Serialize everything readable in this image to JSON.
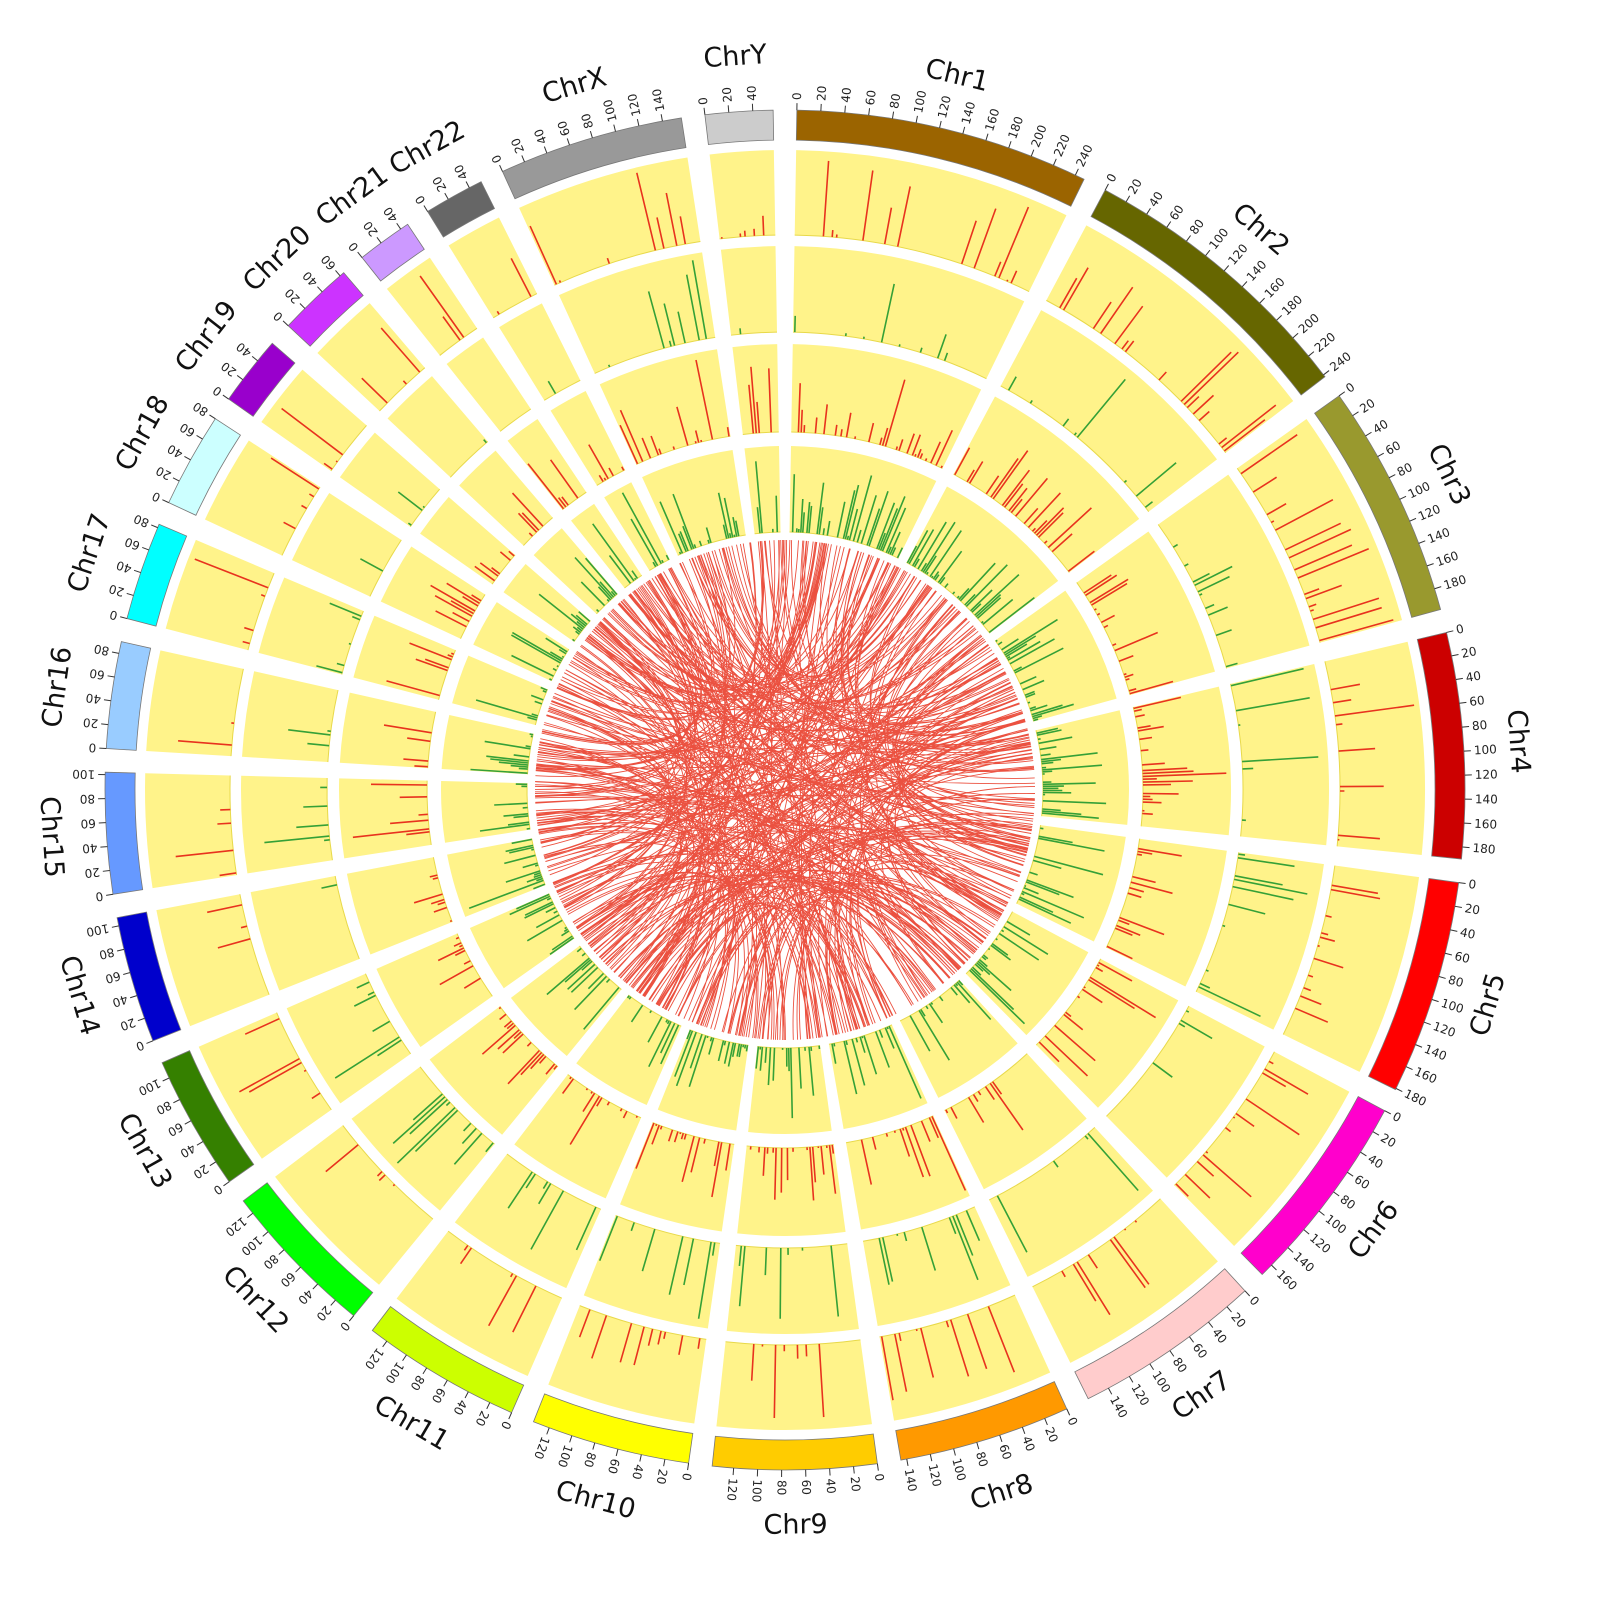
{
  "chart_data": {
    "type": "circos",
    "track_colors": {
      "background": "#FFF38A",
      "hist_red": "#E8321E",
      "hist_green": "#35A037",
      "link": "#E8321E"
    },
    "chromosomes": [
      {
        "name": "Chr1",
        "length": 248,
        "color": "#9B6400",
        "tick_step": 20,
        "ticks": [
          "0",
          "20",
          "40",
          "60",
          "80",
          "100",
          "120",
          "140",
          "160",
          "180",
          "200",
          "220",
          "240"
        ]
      },
      {
        "name": "Chr2",
        "length": 242,
        "color": "#666600",
        "tick_step": 20,
        "ticks": [
          "0",
          "20",
          "40",
          "60",
          "80",
          "100",
          "120",
          "140",
          "160",
          "180",
          "200",
          "220",
          "240"
        ]
      },
      {
        "name": "Chr3",
        "length": 198,
        "color": "#99992E",
        "tick_step": 20,
        "ticks": [
          "0",
          "20",
          "40",
          "60",
          "80",
          "100",
          "120",
          "140",
          "160",
          "180"
        ]
      },
      {
        "name": "Chr4",
        "length": 190,
        "color": "#CC0000",
        "tick_step": 20,
        "ticks": [
          "0",
          "20",
          "40",
          "60",
          "80",
          "100",
          "120",
          "140",
          "160",
          "180"
        ]
      },
      {
        "name": "Chr5",
        "length": 181,
        "color": "#FF0000",
        "tick_step": 20,
        "ticks": [
          "0",
          "20",
          "40",
          "60",
          "80",
          "100",
          "120",
          "140",
          "160",
          "180"
        ]
      },
      {
        "name": "Chr6",
        "length": 171,
        "color": "#FF00CC",
        "tick_step": 20,
        "ticks": [
          "0",
          "20",
          "40",
          "60",
          "80",
          "100",
          "120",
          "140",
          "160"
        ]
      },
      {
        "name": "Chr7",
        "length": 159,
        "color": "#FFCCCC",
        "tick_step": 20,
        "ticks": [
          "0",
          "20",
          "40",
          "60",
          "80",
          "100",
          "120",
          "140"
        ]
      },
      {
        "name": "Chr8",
        "length": 145,
        "color": "#FF9900",
        "tick_step": 20,
        "ticks": [
          "0",
          "20",
          "40",
          "60",
          "80",
          "100",
          "120",
          "140"
        ]
      },
      {
        "name": "Chr9",
        "length": 138,
        "color": "#FFCC00",
        "tick_step": 20,
        "ticks": [
          "0",
          "20",
          "40",
          "60",
          "80",
          "100",
          "120"
        ]
      },
      {
        "name": "Chr10",
        "length": 134,
        "color": "#FFFF00",
        "tick_step": 20,
        "ticks": [
          "0",
          "20",
          "40",
          "60",
          "80",
          "100",
          "120"
        ]
      },
      {
        "name": "Chr11",
        "length": 135,
        "color": "#CCFF00",
        "tick_step": 20,
        "ticks": [
          "0",
          "20",
          "40",
          "60",
          "80",
          "100",
          "120"
        ]
      },
      {
        "name": "Chr12",
        "length": 133,
        "color": "#00FF00",
        "tick_step": 20,
        "ticks": [
          "0",
          "20",
          "40",
          "60",
          "80",
          "100",
          "120"
        ]
      },
      {
        "name": "Chr13",
        "length": 114,
        "color": "#358000",
        "tick_step": 20,
        "ticks": [
          "0",
          "20",
          "40",
          "60",
          "80",
          "100"
        ]
      },
      {
        "name": "Chr14",
        "length": 107,
        "color": "#0000CC",
        "tick_step": 20,
        "ticks": [
          "0",
          "20",
          "40",
          "60",
          "80",
          "100"
        ]
      },
      {
        "name": "Chr15",
        "length": 102,
        "color": "#6699FF",
        "tick_step": 20,
        "ticks": [
          "0",
          "20",
          "40",
          "60",
          "80",
          "100"
        ]
      },
      {
        "name": "Chr16",
        "length": 90,
        "color": "#99CCFF",
        "tick_step": 20,
        "ticks": [
          "0",
          "20",
          "40",
          "60",
          "80"
        ]
      },
      {
        "name": "Chr17",
        "length": 83,
        "color": "#00FFFF",
        "tick_step": 20,
        "ticks": [
          "0",
          "20",
          "40",
          "60",
          "80"
        ]
      },
      {
        "name": "Chr18",
        "length": 80,
        "color": "#CCFFFF",
        "tick_step": 20,
        "ticks": [
          "0",
          "20",
          "40",
          "60",
          "80"
        ]
      },
      {
        "name": "Chr19",
        "length": 59,
        "color": "#9900CC",
        "tick_step": 20,
        "ticks": [
          "0",
          "20",
          "40"
        ]
      },
      {
        "name": "Chr20",
        "length": 64,
        "color": "#CC33FF",
        "tick_step": 20,
        "ticks": [
          "0",
          "20",
          "40",
          "60"
        ]
      },
      {
        "name": "Chr21",
        "length": 47,
        "color": "#CC99FF",
        "tick_step": 20,
        "ticks": [
          "0",
          "20",
          "40"
        ]
      },
      {
        "name": "Chr22",
        "length": 51,
        "color": "#666666",
        "tick_step": 20,
        "ticks": [
          "0",
          "20",
          "40"
        ]
      },
      {
        "name": "ChrX",
        "length": 156,
        "color": "#999999",
        "tick_step": 20,
        "ticks": [
          "0",
          "20",
          "40",
          "60",
          "80",
          "100",
          "120",
          "140"
        ]
      },
      {
        "name": "ChrY",
        "length": 57,
        "color": "#CCCCCC",
        "tick_step": 20,
        "ticks": [
          "0",
          "20",
          "40"
        ]
      }
    ],
    "tracks": [
      {
        "type": "histogram",
        "color": "red",
        "position": "outermost"
      },
      {
        "type": "histogram",
        "color": "green",
        "position": "second"
      },
      {
        "type": "histogram",
        "color": "red",
        "position": "third"
      },
      {
        "type": "histogram",
        "color": "green",
        "position": "innermost"
      }
    ],
    "links": {
      "color": "red",
      "description_count_estimate": 420
    }
  }
}
